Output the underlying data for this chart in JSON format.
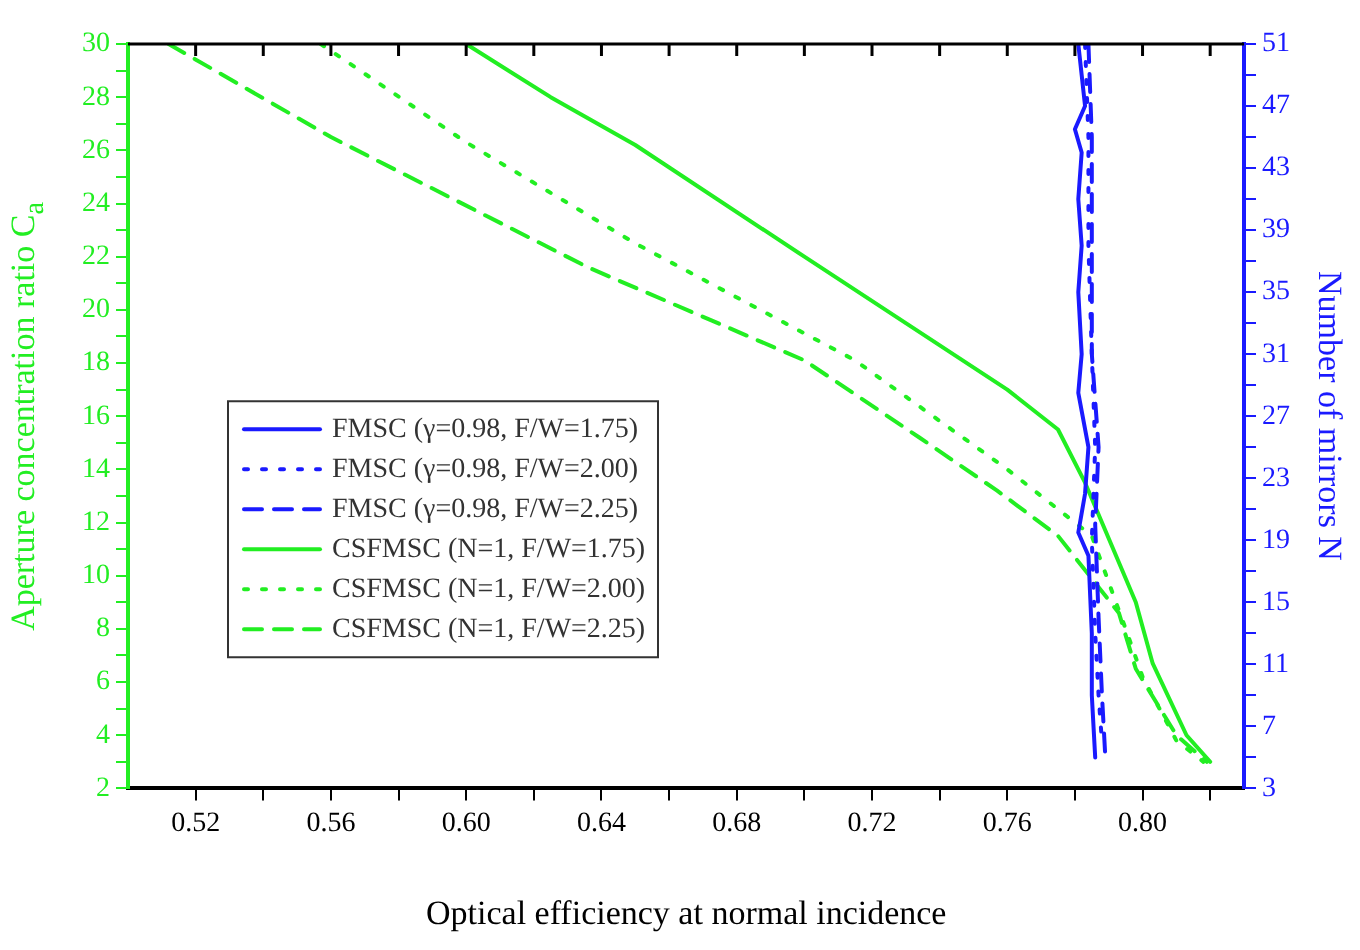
{
  "chart_data": {
    "type": "line",
    "xlabel": "Optical efficiency at normal incidence",
    "ylabel": "Aperture concentration ratio C$_{a}$",
    "y2label": "Number of mirrors N",
    "xlim": [
      0.5,
      0.83
    ],
    "xticks": [
      {
        "value": 0.52,
        "label": "0.52"
      },
      {
        "value": 0.54,
        "label": null
      },
      {
        "value": 0.56,
        "label": "0.56"
      },
      {
        "value": 0.58,
        "label": null
      },
      {
        "value": 0.6,
        "label": "0.60"
      },
      {
        "value": 0.62,
        "label": null
      },
      {
        "value": 0.64,
        "label": "0.64"
      },
      {
        "value": 0.66,
        "label": null
      },
      {
        "value": 0.68,
        "label": "0.68"
      },
      {
        "value": 0.7,
        "label": null
      },
      {
        "value": 0.72,
        "label": "0.72"
      },
      {
        "value": 0.74,
        "label": null
      },
      {
        "value": 0.76,
        "label": "0.76"
      },
      {
        "value": 0.78,
        "label": null
      },
      {
        "value": 0.8,
        "label": "0.80"
      },
      {
        "value": 0.82,
        "label": null
      }
    ],
    "ylim": [
      2,
      30
    ],
    "yticks": [
      2,
      {
        "value": 3,
        "label": null
      },
      4,
      {
        "value": 5,
        "label": null
      },
      6,
      {
        "value": 7,
        "label": null
      },
      8,
      {
        "value": 9,
        "label": null
      },
      10,
      {
        "value": 11,
        "label": null
      },
      12,
      {
        "value": 13,
        "label": null
      },
      14,
      {
        "value": 15,
        "label": null
      },
      16,
      {
        "value": 17,
        "label": null
      },
      18,
      {
        "value": 19,
        "label": null
      },
      20,
      {
        "value": 21,
        "label": null
      },
      22,
      {
        "value": 23,
        "label": null
      },
      24,
      {
        "value": 25,
        "label": null
      },
      26,
      {
        "value": 27,
        "label": null
      },
      28,
      {
        "value": 29,
        "label": null
      },
      30
    ],
    "y2lim": [
      3,
      51
    ],
    "y2ticks": [
      3,
      {
        "value": 5,
        "label": null
      },
      7,
      {
        "value": 9,
        "label": null
      },
      11,
      {
        "value": 13,
        "label": null
      },
      15,
      {
        "value": 17,
        "label": null
      },
      19,
      {
        "value": 21,
        "label": null
      },
      23,
      {
        "value": 25,
        "label": null
      },
      27,
      {
        "value": 29,
        "label": null
      },
      31,
      {
        "value": 33,
        "label": null
      },
      35,
      {
        "value": 37,
        "label": null
      },
      39,
      {
        "value": 41,
        "label": null
      },
      43,
      {
        "value": 45,
        "label": null
      },
      47,
      {
        "value": 49,
        "label": null
      },
      51
    ],
    "legend": "left",
    "marker": "none",
    "series": [
      {
        "name": "FMSC (γ=0.98, F/W=1.75)",
        "color": "#1a1aff",
        "axis": "y2",
        "line_style": "solid",
        "x": [
          0.781,
          0.782,
          0.783,
          0.78,
          0.782,
          0.781,
          0.782,
          0.781,
          0.782,
          0.781,
          0.784,
          0.783,
          0.781,
          0.784,
          0.785,
          0.785,
          0.786
        ],
        "values": [
          51,
          49,
          47,
          45.5,
          44,
          41,
          38,
          35,
          31,
          28.5,
          25,
          22,
          19.5,
          18,
          13,
          9,
          5
        ]
      },
      {
        "name": "FMSC (γ=0.98, F/W=2.00)",
        "color": "#1a1aff",
        "axis": "y2",
        "line_style": "dotted",
        "x": [
          0.783,
          0.784,
          0.784,
          0.785,
          0.786,
          0.785,
          0.786,
          0.787,
          0.788
        ],
        "values": [
          51,
          45,
          38,
          31,
          25,
          19,
          13,
          9,
          6
        ]
      },
      {
        "name": "FMSC (γ=0.98, F/W=2.25)",
        "color": "#1a1aff",
        "axis": "y2",
        "line_style": "dashed",
        "x": [
          0.784,
          0.785,
          0.785,
          0.785,
          0.787,
          0.786,
          0.787,
          0.788,
          0.789
        ],
        "values": [
          51,
          45,
          38,
          31,
          25,
          20,
          14,
          9,
          5
        ]
      },
      {
        "name": "CSFMSC (N=1, F/W=1.75)",
        "color": "#22ee22",
        "line_style": "solid",
        "x": [
          0.6,
          0.625,
          0.65,
          0.7,
          0.73,
          0.76,
          0.775,
          0.783,
          0.798,
          0.803,
          0.813,
          0.82
        ],
        "values": [
          30,
          28,
          26.2,
          22,
          19.5,
          17,
          15.5,
          13.5,
          9,
          6.7,
          4,
          3
        ]
      },
      {
        "name": "CSFMSC (N=1, F/W=2.00)",
        "color": "#22ee22",
        "line_style": "dotted",
        "x": [
          0.557,
          0.6,
          0.65,
          0.715,
          0.76,
          0.785,
          0.795,
          0.8,
          0.81,
          0.818
        ],
        "values": [
          30,
          26.3,
          22.5,
          18.1,
          14,
          11.5,
          8,
          6.2,
          3.8,
          3
        ]
      },
      {
        "name": "CSFMSC (N=1, F/W=2.25)",
        "color": "#22ee22",
        "line_style": "dashed",
        "x": [
          0.512,
          0.56,
          0.636,
          0.7,
          0.734,
          0.757,
          0.775,
          0.793,
          0.798,
          0.81,
          0.819
        ],
        "values": [
          30,
          26.5,
          21.6,
          18.1,
          15.2,
          13.2,
          11.5,
          8.6,
          6.5,
          4,
          3
        ]
      }
    ]
  }
}
